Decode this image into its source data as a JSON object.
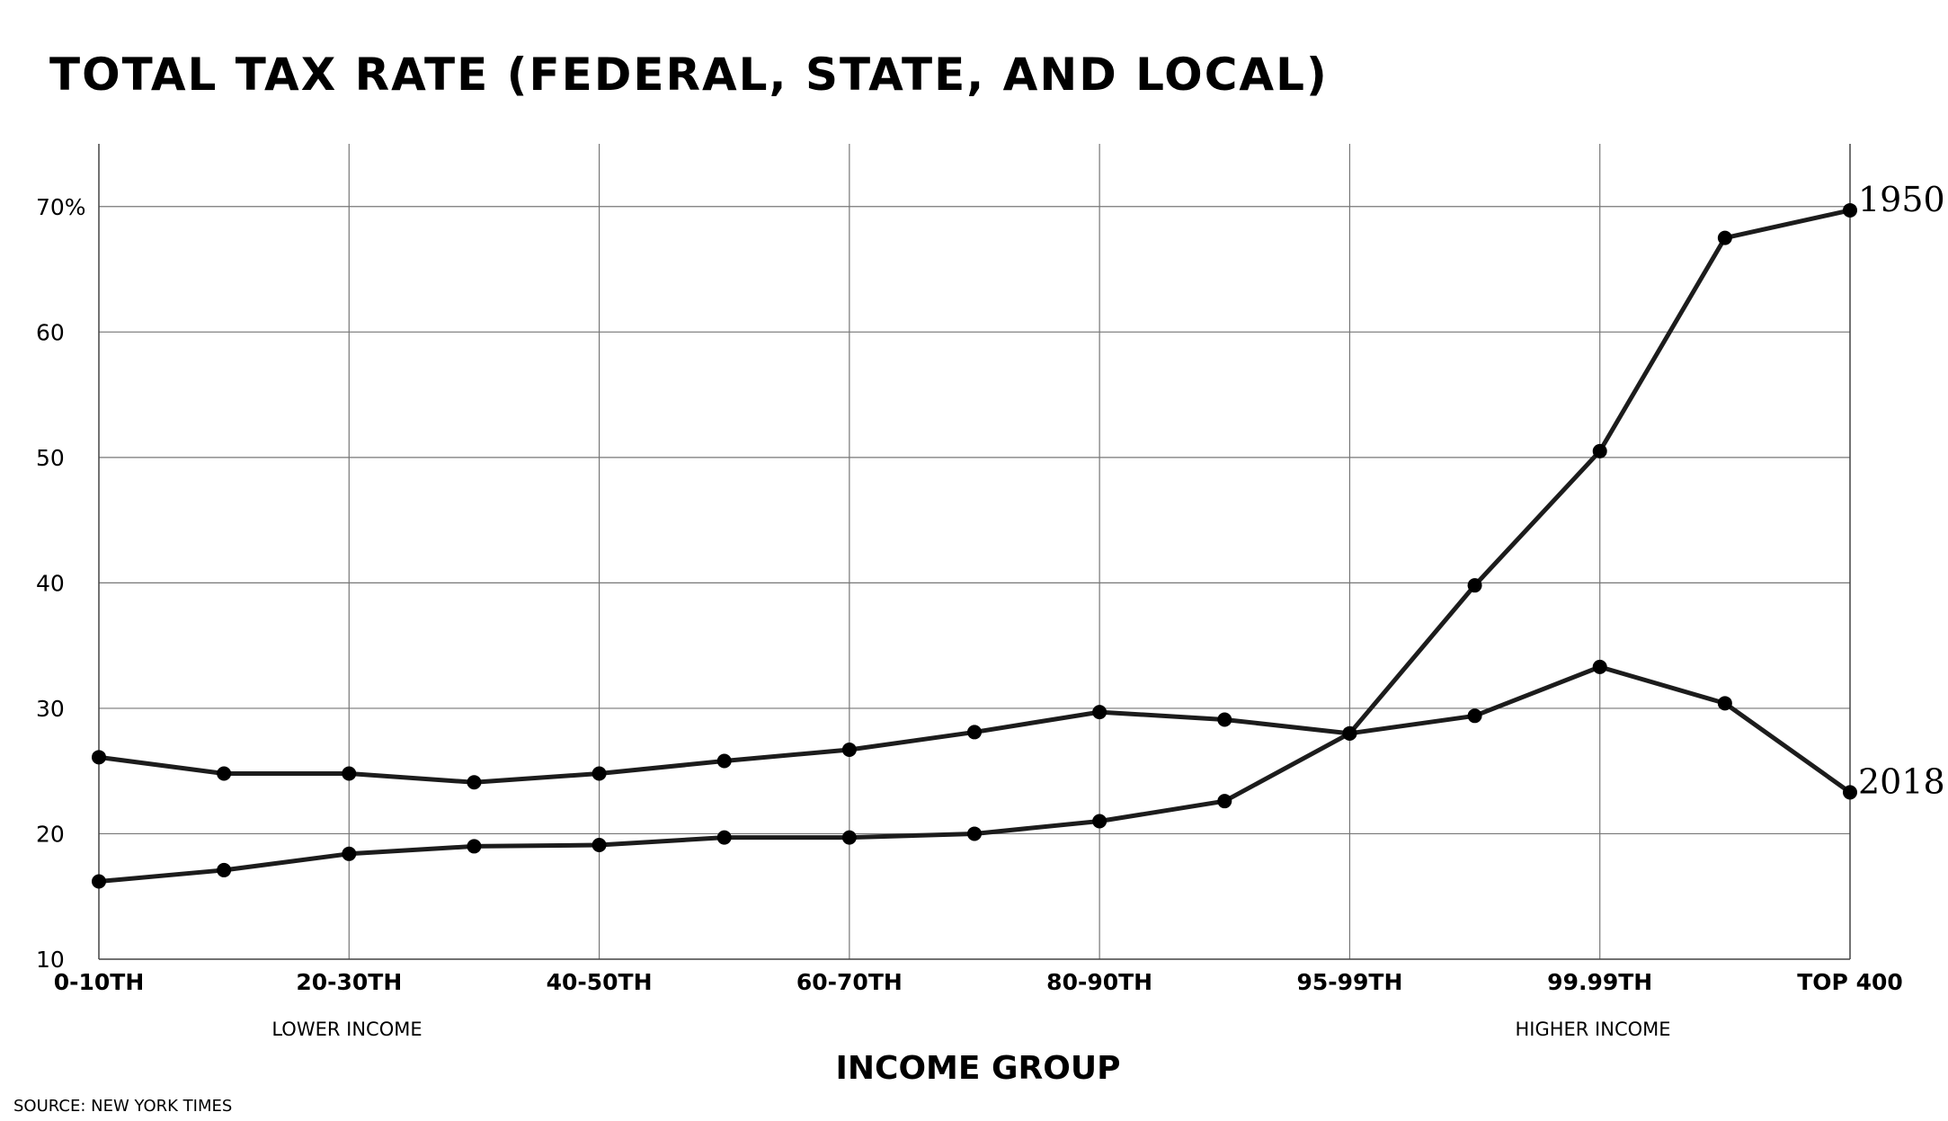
{
  "chart_data": {
    "type": "line",
    "title": "TOTAL TAX RATE (FEDERAL, STATE, AND LOCAL)",
    "xlabel": "INCOME GROUP",
    "ylabel": "",
    "x_positions": 15,
    "x_tick_labels": [
      "0-10TH",
      "20-30TH",
      "40-50TH",
      "60-70TH",
      "80-90TH",
      "95-99TH",
      "99.99TH",
      "TOP 400"
    ],
    "y_tick_labels": [
      "10",
      "20",
      "30",
      "40",
      "50",
      "60",
      "70%"
    ],
    "y_ticks": [
      10,
      20,
      30,
      40,
      50,
      60,
      70
    ],
    "ylim": [
      10,
      75
    ],
    "grid": true,
    "annotations": {
      "lower": "LOWER INCOME",
      "higher": "HIGHER INCOME"
    },
    "source": "SOURCE: NEW YORK TIMES",
    "series": [
      {
        "name": "1950",
        "values": [
          16.2,
          17.1,
          18.4,
          19.0,
          19.1,
          19.7,
          19.7,
          20.0,
          21.0,
          22.6,
          28.0,
          39.8,
          50.5,
          67.5,
          69.7
        ]
      },
      {
        "name": "2018",
        "values": [
          26.1,
          24.8,
          24.8,
          24.1,
          24.8,
          25.8,
          26.7,
          28.1,
          29.7,
          29.1,
          28.0,
          29.4,
          33.3,
          30.4,
          23.3
        ]
      }
    ]
  }
}
